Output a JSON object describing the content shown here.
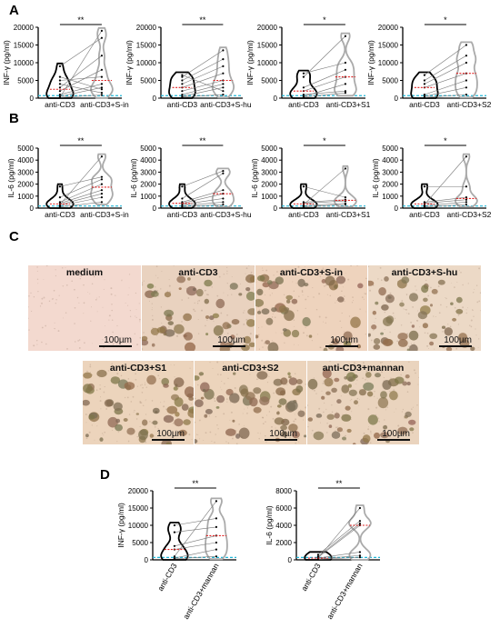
{
  "panels": {
    "A": "A",
    "B": "B",
    "C": "C",
    "D": "D"
  },
  "scale_label": "100µm",
  "micrographs": [
    {
      "title": "medium",
      "tint": "#f3d9cf",
      "density": 0
    },
    {
      "title": "anti-CD3",
      "tint": "#e9d2bf",
      "density": 55
    },
    {
      "title": "anti-CD3+S-in",
      "tint": "#eed3bd",
      "density": 45
    },
    {
      "title": "anti-CD3+S-hu",
      "tint": "#ecd9c6",
      "density": 50
    },
    {
      "title": "anti-CD3+S1",
      "tint": "#ecd4bc",
      "density": 55
    },
    {
      "title": "anti-CD3+S2",
      "tint": "#ecd4bc",
      "density": 55
    },
    {
      "title": "anti-CD3+mannan",
      "tint": "#ead4be",
      "density": 55
    }
  ],
  "chart_data": [
    {
      "type": "violin",
      "panel": "A",
      "categories": [
        "anti-CD3",
        "anti-CD3+S-in"
      ],
      "ylabel": "INF-γ (pg/ml)",
      "ylim": [
        0,
        20000
      ],
      "yticks": [
        "0",
        "5000",
        "10000",
        "15000",
        "20000"
      ],
      "significance": "**",
      "median_line": "red",
      "baseline": "cyan",
      "pairs": [
        [
          200,
          19000
        ],
        [
          9000,
          17000
        ],
        [
          3000,
          12000
        ],
        [
          2000,
          8000
        ],
        [
          5000,
          6000
        ],
        [
          1000,
          4000
        ],
        [
          500,
          3000
        ],
        [
          6000,
          2500
        ],
        [
          4000,
          1500
        ],
        [
          200,
          900
        ]
      ]
    },
    {
      "type": "violin",
      "panel": "A",
      "categories": [
        "anti-CD3",
        "anti-CD3+S-hu"
      ],
      "ylabel": "INF-γ (pg/ml)",
      "ylim": [
        0,
        20000
      ],
      "yticks": [
        "0",
        "5000",
        "10000",
        "15000",
        "20000"
      ],
      "significance": "**",
      "median_line": "red",
      "baseline": "cyan",
      "pairs": [
        [
          6000,
          13500
        ],
        [
          5000,
          11000
        ],
        [
          4000,
          9000
        ],
        [
          3000,
          7000
        ],
        [
          2000,
          5000
        ],
        [
          1000,
          4000
        ],
        [
          500,
          3000
        ],
        [
          6500,
          2000
        ],
        [
          300,
          1000
        ]
      ]
    },
    {
      "type": "violin",
      "panel": "A",
      "categories": [
        "anti-CD3",
        "anti-CD3+S1"
      ],
      "ylabel": "INF-γ (pg/ml)",
      "ylim": [
        0,
        20000
      ],
      "yticks": [
        "0",
        "5000",
        "10000",
        "15000",
        "20000"
      ],
      "significance": "*",
      "median_line": "red",
      "baseline": "cyan",
      "pairs": [
        [
          6000,
          17500
        ],
        [
          7000,
          10000
        ],
        [
          3000,
          8000
        ],
        [
          2000,
          6000
        ],
        [
          500,
          4000
        ],
        [
          1000,
          2000
        ],
        [
          300,
          1500
        ]
      ]
    },
    {
      "type": "violin",
      "panel": "A",
      "categories": [
        "anti-CD3",
        "anti-CD3+S2"
      ],
      "ylabel": "INF-γ (pg/ml)",
      "ylim": [
        0,
        20000
      ],
      "yticks": [
        "0",
        "5000",
        "10000",
        "15000",
        "20000"
      ],
      "significance": "*",
      "median_line": "red",
      "baseline": "cyan",
      "pairs": [
        [
          6500,
          15000
        ],
        [
          5000,
          12000
        ],
        [
          4000,
          10000
        ],
        [
          3000,
          7000
        ],
        [
          1000,
          5000
        ],
        [
          500,
          3000
        ],
        [
          200,
          1000
        ]
      ]
    },
    {
      "type": "violin",
      "panel": "B",
      "categories": [
        "anti-CD3",
        "anti-CD3+S-in"
      ],
      "ylabel": "IL-6 (pg/ml)",
      "ylim": [
        0,
        5000
      ],
      "yticks": [
        "0",
        "1000",
        "2000",
        "3000",
        "4000",
        "5000"
      ],
      "significance": "**",
      "median_line": "red",
      "baseline": "cyan",
      "pairs": [
        [
          300,
          4300
        ],
        [
          1800,
          2600
        ],
        [
          900,
          2400
        ],
        [
          500,
          2000
        ],
        [
          400,
          1500
        ],
        [
          300,
          1200
        ],
        [
          200,
          900
        ],
        [
          100,
          500
        ]
      ]
    },
    {
      "type": "violin",
      "panel": "B",
      "categories": [
        "anti-CD3",
        "anti-CD3+S-hu"
      ],
      "ylabel": "IL-6 (pg/ml)",
      "ylim": [
        0,
        5000
      ],
      "yticks": [
        "0",
        "1000",
        "2000",
        "3000",
        "4000",
        "5000"
      ],
      "significance": "**",
      "median_line": "red",
      "baseline": "cyan",
      "pairs": [
        [
          1800,
          3100
        ],
        [
          800,
          2900
        ],
        [
          500,
          1500
        ],
        [
          400,
          1200
        ],
        [
          300,
          800
        ],
        [
          200,
          500
        ],
        [
          100,
          300
        ]
      ]
    },
    {
      "type": "violin",
      "panel": "B",
      "categories": [
        "anti-CD3",
        "anti-CD3+S1"
      ],
      "ylabel": "IL-6 (pg/ml)",
      "ylim": [
        0,
        5000
      ],
      "yticks": [
        "0",
        "1000",
        "2000",
        "3000",
        "4000",
        "5000"
      ],
      "significance": "*",
      "median_line": "red",
      "baseline": "cyan",
      "pairs": [
        [
          300,
          3300
        ],
        [
          1800,
          900
        ],
        [
          500,
          700
        ],
        [
          400,
          600
        ],
        [
          200,
          400
        ],
        [
          100,
          300
        ]
      ]
    },
    {
      "type": "violin",
      "panel": "B",
      "categories": [
        "anti-CD3",
        "anti-CD3+S2"
      ],
      "ylabel": "IL-6 (pg/ml)",
      "ylim": [
        0,
        5000
      ],
      "yticks": [
        "0",
        "1000",
        "2000",
        "3000",
        "4000",
        "5000"
      ],
      "significance": "*",
      "median_line": "red",
      "baseline": "cyan",
      "pairs": [
        [
          300,
          4300
        ],
        [
          1800,
          1800
        ],
        [
          500,
          900
        ],
        [
          400,
          700
        ],
        [
          200,
          500
        ],
        [
          100,
          300
        ]
      ]
    },
    {
      "type": "violin",
      "panel": "D",
      "categories": [
        "anti-CD3",
        "anti-CD3+mannan"
      ],
      "ylabel": "INF-γ (pg/ml)",
      "ylim": [
        0,
        20000
      ],
      "yticks": [
        "0",
        "5000",
        "10000",
        "15000",
        "20000"
      ],
      "significance": "**",
      "median_line": "red",
      "baseline": "cyan",
      "pairs": [
        [
          1000,
          17000
        ],
        [
          10000,
          12000
        ],
        [
          8000,
          9500
        ],
        [
          4000,
          7000
        ],
        [
          3000,
          5000
        ],
        [
          500,
          3000
        ],
        [
          300,
          1000
        ]
      ]
    },
    {
      "type": "violin",
      "panel": "D",
      "categories": [
        "anti-CD3",
        "anti-CD3+mannan"
      ],
      "ylabel": "IL-6 (pg/ml)",
      "ylim": [
        0,
        8000
      ],
      "yticks": [
        "0",
        "2000",
        "4000",
        "6000",
        "8000"
      ],
      "significance": "**",
      "median_line": "red",
      "baseline": "cyan",
      "pairs": [
        [
          200,
          6000
        ],
        [
          600,
          4500
        ],
        [
          400,
          4200
        ],
        [
          300,
          4000
        ],
        [
          200,
          900
        ],
        [
          100,
          500
        ],
        [
          50,
          300
        ]
      ]
    }
  ]
}
